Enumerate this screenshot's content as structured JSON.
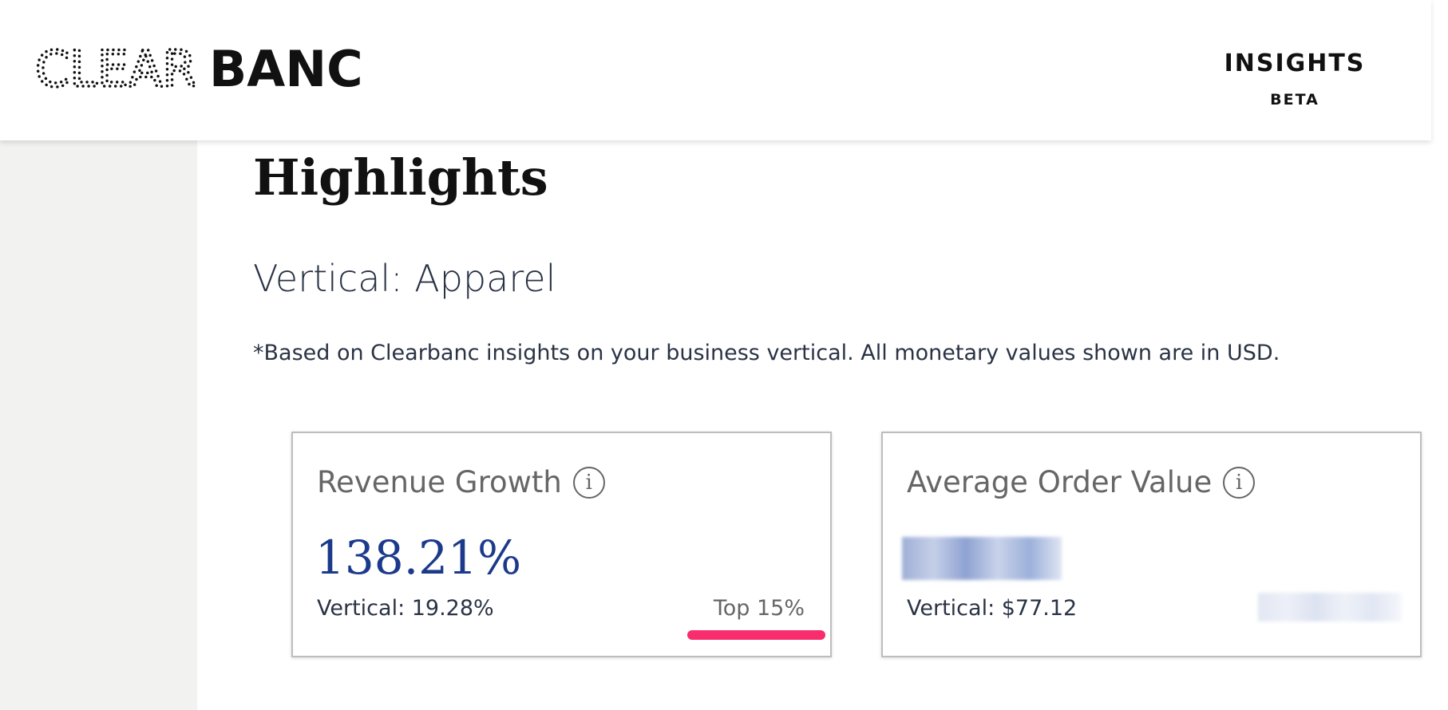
{
  "header": {
    "logo": {
      "light": "CLEAR",
      "bold": "BANC"
    },
    "nav": {
      "label": "INSIGHTS",
      "badge": "BETA"
    }
  },
  "page": {
    "title": "Highlights",
    "subtitle": "Vertical: Apparel",
    "note": "*Based on Clearbanc insights on your business vertical. All monetary values shown are in USD."
  },
  "cards": [
    {
      "title": "Revenue Growth",
      "value": "138.21%",
      "vertical": "Vertical: 19.28%",
      "rank": "Top 15%"
    },
    {
      "title": "Average Order Value",
      "vertical": "Vertical: $77.12"
    }
  ]
}
